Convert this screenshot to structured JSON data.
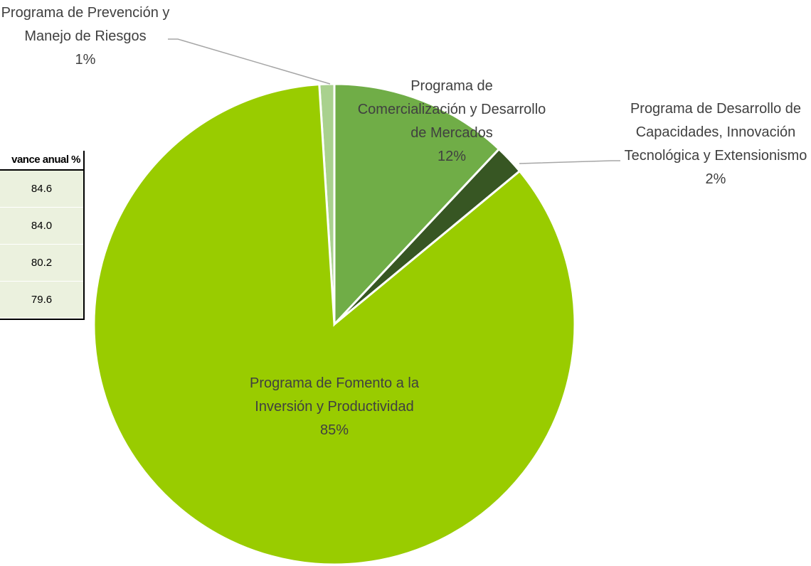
{
  "table": {
    "header": "vance anual %",
    "rows": [
      "84.6",
      "84.0",
      "80.2",
      "79.6"
    ]
  },
  "chart_data": {
    "type": "pie",
    "categories": [
      "Programa de Comercialización y Desarrollo de Mercados",
      "Programa de Desarrollo de Capacidades, Innovación Tecnológica y Extensionismo",
      "Programa de Fomento a la Inversión y Productividad",
      "Programa de Prevención y Manejo de Riesgos"
    ],
    "values": [
      12,
      2,
      85,
      1
    ],
    "value_labels": [
      "12%",
      "2%",
      "85%",
      "1%"
    ],
    "colors": [
      "#70ad47",
      "#375623",
      "#99cc00",
      "#a9d18e"
    ]
  }
}
